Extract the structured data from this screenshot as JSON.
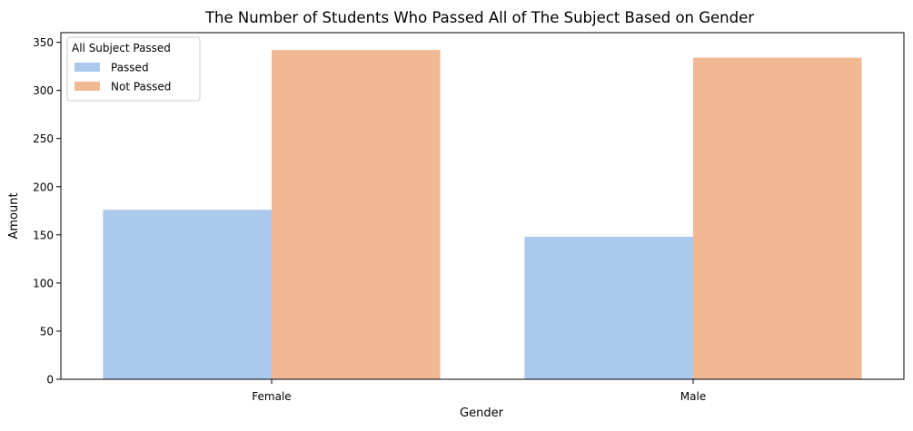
{
  "chart_data": {
    "type": "bar",
    "title": "The Number of Students Who Passed All of The Subject Based on Gender",
    "xlabel": "Gender",
    "ylabel": "Amount",
    "categories": [
      "Female",
      "Male"
    ],
    "ylim": [
      0,
      360
    ],
    "yticks": [
      0,
      50,
      100,
      150,
      200,
      250,
      300,
      350
    ],
    "grid": false,
    "legend": {
      "title": "All Subject Passed",
      "placement": "top-left"
    },
    "series": [
      {
        "name": "Passed",
        "color": "#abc9ed",
        "values": [
          176,
          148
        ]
      },
      {
        "name": "Not Passed",
        "color": "#f0b893",
        "values": [
          342,
          334
        ]
      }
    ]
  }
}
